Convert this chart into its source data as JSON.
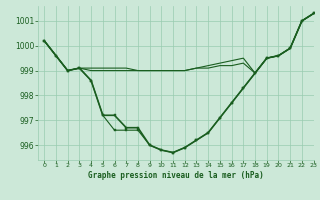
{
  "background_color": "#cce8d8",
  "grid_color": "#99ccb0",
  "line_color": "#1a5e20",
  "xlabel": "Graphe pression niveau de la mer (hPa)",
  "ylabel_ticks": [
    996,
    997,
    998,
    999,
    1000,
    1001
  ],
  "xlim": [
    -0.5,
    23
  ],
  "ylim": [
    995.4,
    1001.6
  ],
  "x_ticks": [
    0,
    1,
    2,
    3,
    4,
    5,
    6,
    7,
    8,
    9,
    10,
    11,
    12,
    13,
    14,
    15,
    16,
    17,
    18,
    19,
    20,
    21,
    22,
    23
  ],
  "series": [
    {
      "y": [
        1000.2,
        999.6,
        999.0,
        999.1,
        998.6,
        997.2,
        997.2,
        996.7,
        996.7,
        996.0,
        995.8,
        995.7,
        995.9,
        996.2,
        996.5,
        997.1,
        997.7,
        998.3,
        998.9,
        999.5,
        999.6,
        999.9,
        1001.0,
        1001.3
      ],
      "marker": true,
      "lw": 1.2
    },
    {
      "y": [
        1000.2,
        999.6,
        999.0,
        999.1,
        999.1,
        999.1,
        999.1,
        999.1,
        999.0,
        999.0,
        999.0,
        999.0,
        999.0,
        999.1,
        999.2,
        999.3,
        999.4,
        999.5,
        998.9,
        999.5,
        999.6,
        999.9,
        1001.0,
        1001.3
      ],
      "marker": false,
      "lw": 0.8
    },
    {
      "y": [
        1000.2,
        999.6,
        999.0,
        999.1,
        999.0,
        999.0,
        999.0,
        999.0,
        999.0,
        999.0,
        999.0,
        999.0,
        999.0,
        999.1,
        999.1,
        999.2,
        999.2,
        999.3,
        998.9,
        999.5,
        999.6,
        999.9,
        1001.0,
        1001.3
      ],
      "marker": false,
      "lw": 0.8
    },
    {
      "y": [
        1000.2,
        999.6,
        999.0,
        999.1,
        998.6,
        997.2,
        996.6,
        996.6,
        996.6,
        996.0,
        995.8,
        995.7,
        995.9,
        996.2,
        996.5,
        997.1,
        997.7,
        998.3,
        998.9,
        999.5,
        999.6,
        999.9,
        1001.0,
        1001.3
      ],
      "marker": true,
      "lw": 0.8
    }
  ]
}
